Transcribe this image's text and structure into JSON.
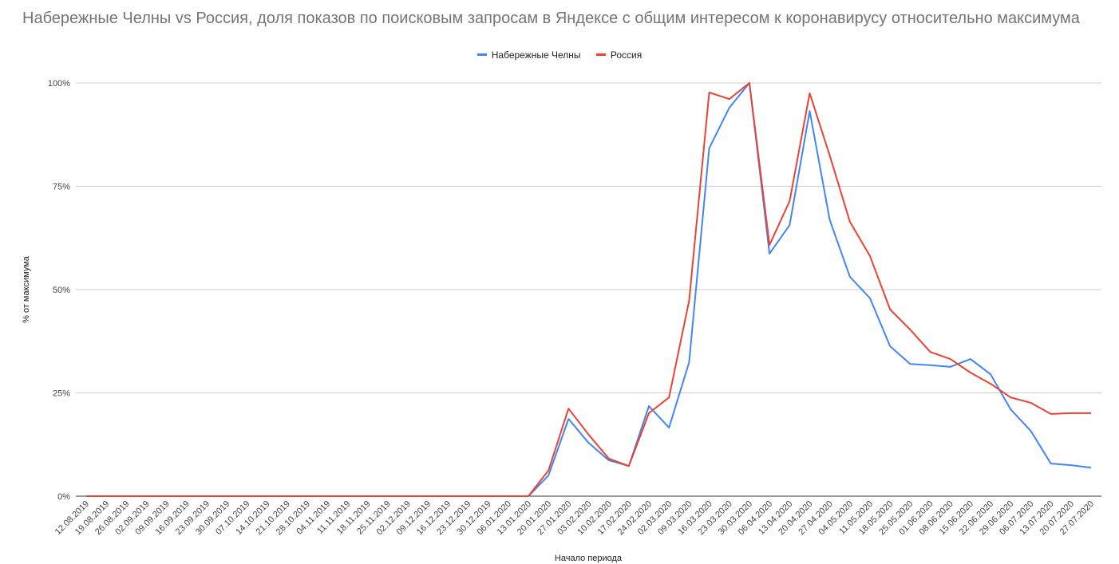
{
  "chart_data": {
    "type": "line",
    "title": "Набережные Челны vs Россия, доля показов по поисковым запросам в Яндексе с общим интересом к коронавирусу относительно максимума",
    "xlabel": "Начало периода",
    "ylabel": "% от максимума",
    "ylim": [
      0,
      100
    ],
    "yticks": [
      "0%",
      "25%",
      "50%",
      "75%",
      "100%"
    ],
    "grid": true,
    "legend": "top",
    "categories": [
      "12.08.2019",
      "19.08.2019",
      "26.08.2019",
      "02.09.2019",
      "09.09.2019",
      "16.09.2019",
      "23.09.2019",
      "30.09.2019",
      "07.10.2019",
      "14.10.2019",
      "21.10.2019",
      "28.10.2019",
      "04.11.2019",
      "11.11.2019",
      "18.11.2019",
      "25.11.2019",
      "02.12.2019",
      "09.12.2019",
      "16.12.2019",
      "23.12.2019",
      "30.12.2019",
      "06.01.2020",
      "13.01.2020",
      "20.01.2020",
      "27.01.2020",
      "03.02.2020",
      "10.02.2020",
      "17.02.2020",
      "24.02.2020",
      "02.03.2020",
      "09.03.2020",
      "16.03.2020",
      "23.03.2020",
      "30.03.2020",
      "06.04.2020",
      "13.04.2020",
      "20.04.2020",
      "27.04.2020",
      "04.05.2020",
      "11.05.2020",
      "18.05.2020",
      "25.05.2020",
      "01.06.2020",
      "08.06.2020",
      "15.06.2020",
      "22.06.2020",
      "29.06.2020",
      "06.07.2020",
      "13.07.2020",
      "20.07.2020",
      "27.07.2020"
    ],
    "series": [
      {
        "name": "Набережные Челны",
        "color": "#4285F4",
        "values": [
          0,
          0,
          0,
          0,
          0,
          0,
          0,
          0,
          0,
          0,
          0,
          0,
          0,
          0,
          0,
          0,
          0,
          0,
          0,
          0,
          0,
          0,
          0,
          5.0,
          18.7,
          12.9,
          8.7,
          7.3,
          21.8,
          16.6,
          32.4,
          84.2,
          94.0,
          100,
          58.7,
          65.6,
          93.2,
          66.8,
          53.1,
          47.9,
          36.3,
          32.0,
          31.7,
          31.3,
          33.2,
          29.5,
          21.0,
          15.8,
          7.9,
          7.5,
          6.9
        ]
      },
      {
        "name": "Россия",
        "color": "#EA4335",
        "values": [
          0,
          0,
          0,
          0,
          0,
          0,
          0,
          0,
          0,
          0,
          0,
          0,
          0,
          0,
          0,
          0,
          0,
          0,
          0,
          0,
          0,
          0,
          0,
          6.2,
          21.2,
          14.9,
          9.1,
          7.3,
          20.1,
          23.9,
          47.3,
          97.7,
          96.1,
          100,
          60.8,
          71.4,
          97.5,
          82.4,
          66.4,
          58.1,
          45.2,
          40.3,
          34.9,
          33.2,
          29.9,
          27.2,
          23.9,
          22.6,
          19.9,
          20.1,
          20.1
        ]
      }
    ]
  }
}
